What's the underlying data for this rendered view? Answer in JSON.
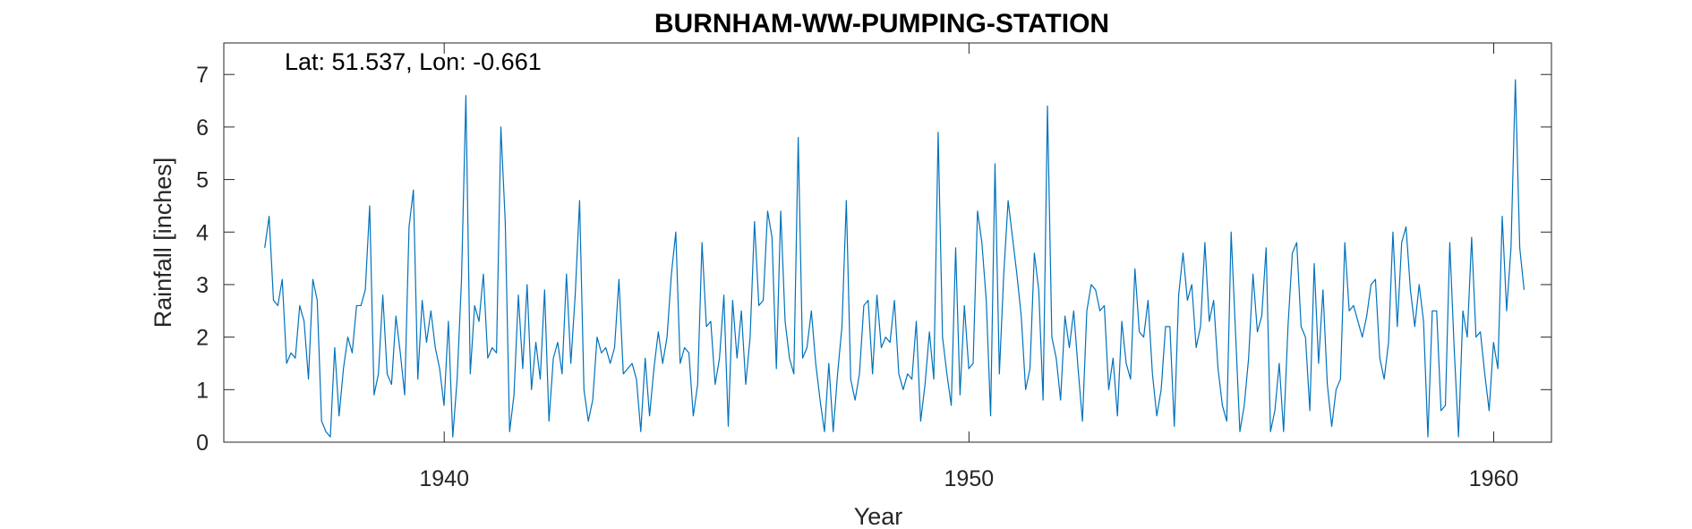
{
  "chart_data": {
    "type": "line",
    "title": "BURNHAM-WW-PUMPING-STATION",
    "xlabel": "Year",
    "ylabel": "Rainfall [inches]",
    "annotation": "Lat: 51.537, Lon: -0.661",
    "xlim": [
      1935.8,
      1961.1
    ],
    "ylim": [
      0,
      7.6
    ],
    "xticks": [
      1940,
      1950,
      1960
    ],
    "yticks": [
      0,
      1,
      2,
      3,
      4,
      5,
      6,
      7
    ],
    "grid": false,
    "line_color": "#0072BD",
    "x_start": 1936.58,
    "x_step": 0.08333,
    "series": [
      {
        "values": [
          3.7,
          4.3,
          2.7,
          2.6,
          3.1,
          1.5,
          1.7,
          1.6,
          2.6,
          2.3,
          1.2,
          3.1,
          2.7,
          0.4,
          0.2,
          0.1,
          1.8,
          0.5,
          1.4,
          2.0,
          1.7,
          2.6,
          2.6,
          2.9,
          4.5,
          0.9,
          1.3,
          2.8,
          1.3,
          1.1,
          2.4,
          1.7,
          0.9,
          4.1,
          4.8,
          1.2,
          2.7,
          1.9,
          2.5,
          1.8,
          1.4,
          0.7,
          2.3,
          0.1,
          1.2,
          3.1,
          6.6,
          1.3,
          2.6,
          2.3,
          3.2,
          1.6,
          1.8,
          1.7,
          6.0,
          4.2,
          0.2,
          0.9,
          2.8,
          1.4,
          3.0,
          1.0,
          1.9,
          1.2,
          2.9,
          0.4,
          1.6,
          1.9,
          1.3,
          3.2,
          1.5,
          2.8,
          4.6,
          1.0,
          0.4,
          0.8,
          2.0,
          1.7,
          1.8,
          1.5,
          1.8,
          3.1,
          1.3,
          1.4,
          1.5,
          1.2,
          0.2,
          1.6,
          0.5,
          1.4,
          2.1,
          1.5,
          2.0,
          3.2,
          4.0,
          1.5,
          1.8,
          1.7,
          0.5,
          1.1,
          3.8,
          2.2,
          2.3,
          1.1,
          1.6,
          2.8,
          0.3,
          2.7,
          1.6,
          2.5,
          1.1,
          2.0,
          4.2,
          2.6,
          2.7,
          4.4,
          3.9,
          1.4,
          4.4,
          2.3,
          1.6,
          1.3,
          5.8,
          1.6,
          1.8,
          2.5,
          1.5,
          0.8,
          0.2,
          1.5,
          0.2,
          1.3,
          2.2,
          4.6,
          1.2,
          0.8,
          1.3,
          2.6,
          2.7,
          1.3,
          2.8,
          1.8,
          2.0,
          1.9,
          2.7,
          1.3,
          1.0,
          1.3,
          1.2,
          2.3,
          0.4,
          1.1,
          2.1,
          1.2,
          5.9,
          2.0,
          1.3,
          0.7,
          3.7,
          0.9,
          2.6,
          1.4,
          1.5,
          4.4,
          3.8,
          2.7,
          0.5,
          5.3,
          1.3,
          3.2,
          4.6,
          3.9,
          3.2,
          2.4,
          1.0,
          1.4,
          3.6,
          2.9,
          0.8,
          6.4,
          2.0,
          1.6,
          0.8,
          2.4,
          1.8,
          2.5,
          1.4,
          0.4,
          2.5,
          3.0,
          2.9,
          2.5,
          2.6,
          1.0,
          1.6,
          0.5,
          2.3,
          1.5,
          1.2,
          3.3,
          2.1,
          2.0,
          2.7,
          1.3,
          0.5,
          1.0,
          2.2,
          2.2,
          0.3,
          2.8,
          3.6,
          2.7,
          3.0,
          1.8,
          2.2,
          3.8,
          2.3,
          2.7,
          1.4,
          0.7,
          0.4,
          4.0,
          2.1,
          0.2,
          0.7,
          1.6,
          3.2,
          2.1,
          2.4,
          3.7,
          0.2,
          0.6,
          1.5,
          0.2,
          2.2,
          3.6,
          3.8,
          2.2,
          2.0,
          0.6,
          3.4,
          1.5,
          2.9,
          1.1,
          0.3,
          1.0,
          1.2,
          3.8,
          2.5,
          2.6,
          2.3,
          2.0,
          2.4,
          3.0,
          3.1,
          1.6,
          1.2,
          1.9,
          4.0,
          2.2,
          3.8,
          4.1,
          2.9,
          2.2,
          3.0,
          2.3,
          0.1,
          2.5,
          2.5,
          0.6,
          0.7,
          3.8,
          1.8,
          0.1,
          2.5,
          2.0,
          3.9,
          2.0,
          2.1,
          1.3,
          0.6,
          1.9,
          1.4,
          4.3,
          2.5,
          3.7,
          6.9,
          3.7,
          2.9
        ]
      }
    ]
  }
}
